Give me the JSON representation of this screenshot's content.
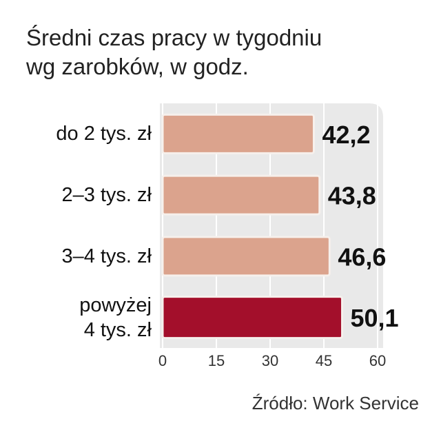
{
  "chart_data": {
    "type": "bar",
    "orientation": "horizontal",
    "title": "Średni czas pracy w tygodniu wg zarobków, w godz.",
    "categories": [
      "do 2 tys. zł",
      "2–3 tys. zł",
      "3–4 tys. zł",
      "powyżej 4 tys. zł"
    ],
    "values": [
      42.2,
      43.8,
      46.6,
      50.1
    ],
    "value_labels": [
      "42,2",
      "43,8",
      "46,6",
      "50,1"
    ],
    "colors": [
      "#dba38d",
      "#dba38d",
      "#dba38d",
      "#a30f2b"
    ],
    "xlim": [
      0,
      60
    ],
    "xticks": [
      0,
      15,
      30,
      45,
      60
    ],
    "grid": true,
    "source": "Źródło: Work Service"
  }
}
